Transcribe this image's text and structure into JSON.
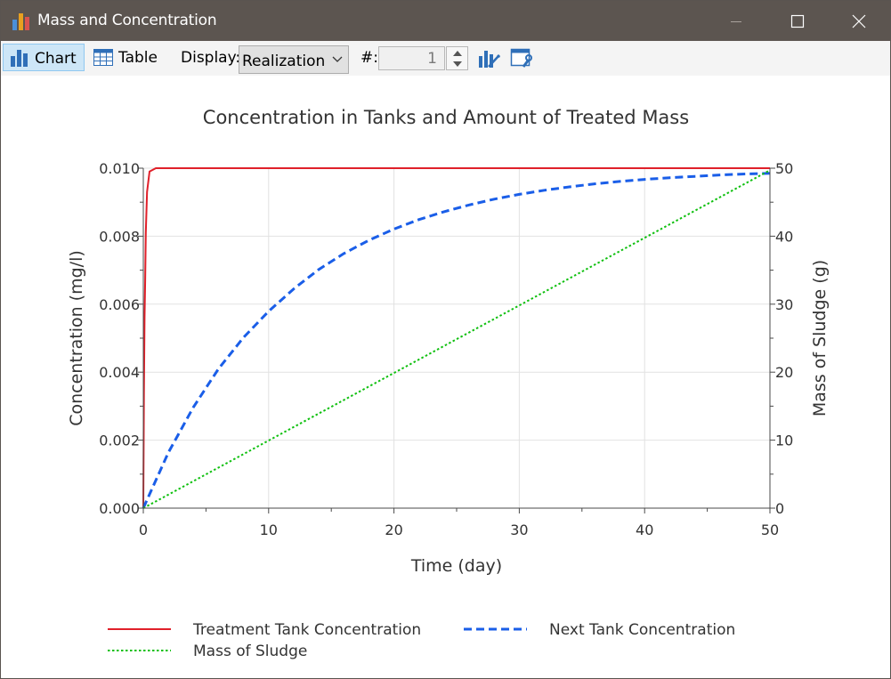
{
  "window": {
    "title": "Mass and Concentration",
    "buttons": [
      "minimize",
      "maximize",
      "close"
    ]
  },
  "toolbar": {
    "chart_label": "Chart",
    "table_label": "Table",
    "display_label": "Display:",
    "display_value": "Realization",
    "number_label": "#:",
    "number_value": "1",
    "icons": [
      "chart-properties-icon",
      "window-settings-icon"
    ]
  },
  "colors": {
    "titlebar": "#5c5550",
    "treatment": "#e0202a",
    "next": "#1a5ee8",
    "sludge": "#10c010",
    "grid": "#e2e2e2",
    "axis": "#4a4a4a"
  },
  "chart_data": {
    "type": "line",
    "title": "Concentration in Tanks and Amount of Treated Mass",
    "xlabel": "Time (day)",
    "ylabel": "Concentration (mg/l)",
    "y2label": "Mass of Sludge (g)",
    "xlim": [
      0,
      50
    ],
    "ylim": [
      0,
      0.01
    ],
    "y2lim": [
      0,
      50
    ],
    "x_ticks": [
      "0",
      "10",
      "20",
      "30",
      "40",
      "50"
    ],
    "y_ticks": [
      "0.000",
      "0.002",
      "0.004",
      "0.006",
      "0.008",
      "0.010"
    ],
    "y2_ticks": [
      "0",
      "10",
      "20",
      "30",
      "40",
      "50"
    ],
    "grid": true,
    "legend_position": "bottom",
    "series": [
      {
        "name": "Treatment Tank Concentration",
        "axis": "left",
        "style": "solid",
        "color": "#e0202a",
        "x": [
          0,
          0.05,
          0.1,
          0.15,
          0.2,
          0.3,
          0.5,
          1,
          50
        ],
        "y": [
          0,
          0.0034,
          0.0056,
          0.0067,
          0.0081,
          0.0093,
          0.0099,
          0.01,
          0.01
        ]
      },
      {
        "name": "Next Tank Concentration",
        "axis": "left",
        "style": "dashed",
        "color": "#1a5ee8",
        "x": [
          0,
          2,
          4,
          6,
          8,
          10,
          12,
          14,
          16,
          18,
          20,
          22,
          24,
          26,
          28,
          30,
          32,
          34,
          36,
          38,
          40,
          42,
          44,
          46,
          48,
          50
        ],
        "y": [
          0,
          0.00164,
          0.00297,
          0.0041,
          0.00502,
          0.00579,
          0.00645,
          0.00702,
          0.00749,
          0.00788,
          0.00821,
          0.00849,
          0.00872,
          0.00892,
          0.00909,
          0.00923,
          0.00935,
          0.00945,
          0.00954,
          0.00961,
          0.00967,
          0.00972,
          0.00976,
          0.0098,
          0.00983,
          0.00985
        ]
      },
      {
        "name": "Mass of Sludge",
        "axis": "right",
        "style": "dotted",
        "color": "#10c010",
        "x": [
          0,
          50
        ],
        "y": [
          0,
          49.7
        ]
      }
    ]
  }
}
